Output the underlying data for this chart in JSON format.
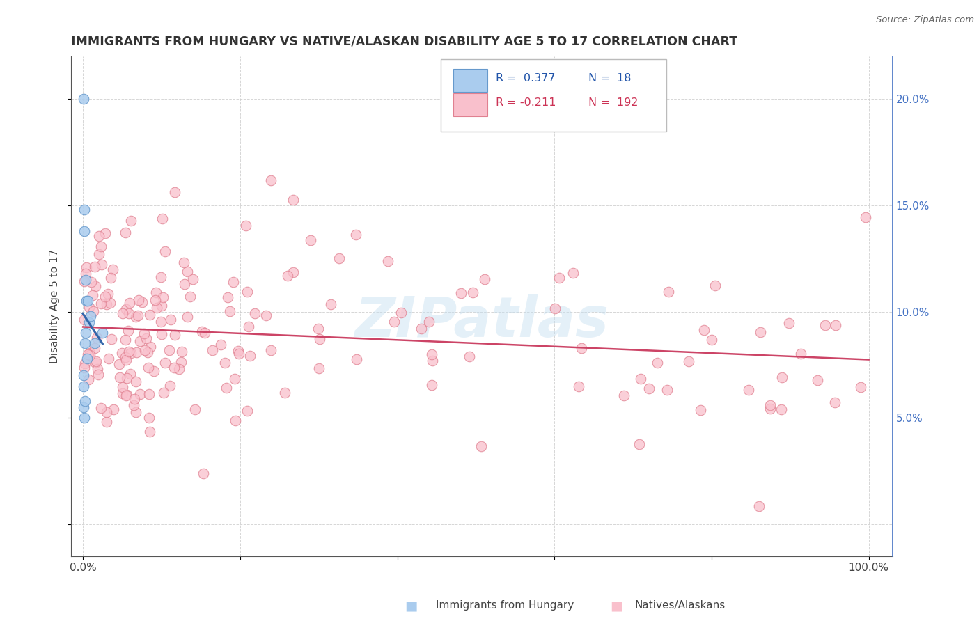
{
  "title": "IMMIGRANTS FROM HUNGARY VS NATIVE/ALASKAN DISABILITY AGE 5 TO 17 CORRELATION CHART",
  "source": "Source: ZipAtlas.com",
  "ylabel": "Disability Age 5 to 17",
  "r_blue": 0.377,
  "n_blue": 18,
  "r_pink": -0.211,
  "n_pink": 192,
  "legend_label_blue": "Immigrants from Hungary",
  "legend_label_pink": "Natives/Alaskans",
  "x_ticks": [
    0.0,
    20.0,
    40.0,
    60.0,
    80.0,
    100.0
  ],
  "x_tick_labels": [
    "0.0%",
    "",
    "",
    "",
    "",
    "100.0%"
  ],
  "y_ticks": [
    0.0,
    5.0,
    10.0,
    15.0,
    20.0
  ],
  "y_tick_labels_right": [
    "",
    "5.0%",
    "10.0%",
    "15.0%",
    "20.0%"
  ],
  "xlim": [
    -1.5,
    103
  ],
  "ylim": [
    -1.5,
    22
  ],
  "blue_dot_color": "#aaccee",
  "blue_dot_edge": "#6699cc",
  "pink_dot_color": "#f9c0cc",
  "pink_dot_edge": "#e08090",
  "blue_line_color": "#3366aa",
  "pink_line_color": "#cc4466",
  "watermark": "ZIPatlas",
  "blue_scatter_x": [
    0.05,
    0.08,
    0.1,
    0.12,
    0.15,
    0.18,
    0.2,
    0.22,
    0.25,
    0.3,
    0.35,
    0.4,
    0.5,
    0.6,
    0.8,
    1.0,
    1.5,
    2.5
  ],
  "blue_scatter_y": [
    20.0,
    6.5,
    5.5,
    7.0,
    14.8,
    13.8,
    5.0,
    5.8,
    8.5,
    11.5,
    9.0,
    10.5,
    7.8,
    10.5,
    9.5,
    9.8,
    8.5,
    9.0
  ]
}
